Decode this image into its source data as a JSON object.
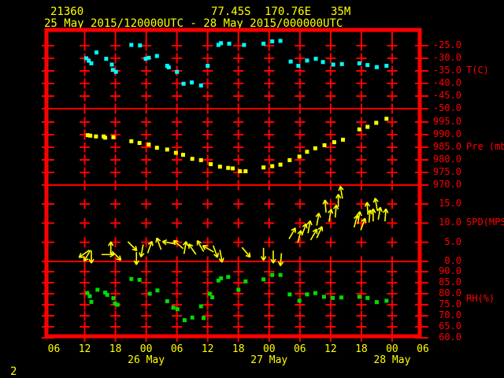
{
  "header": {
    "station_id": "21360",
    "lat": "77.45S",
    "lon": "170.76E",
    "elevation": "35M",
    "period": "25 May 2015/120000UTC - 28 May 2015/000000UTC"
  },
  "page_number": "2",
  "colors": {
    "background": "#000000",
    "grid": "#ff0000",
    "axis_text": "#ff0000",
    "time_text": "#ffff00",
    "temperature": "#00ffff",
    "pressure": "#ffff00",
    "wind": "#ffff00",
    "humidity": "#00dd00"
  },
  "x_axis": {
    "tick_interval_hours": 6,
    "tick_labels": [
      "06",
      "12",
      "18",
      "00",
      "06",
      "12",
      "18",
      "00",
      "06",
      "12",
      "18",
      "00",
      "06"
    ],
    "tick_hours": [
      0,
      6,
      12,
      18,
      24,
      30,
      36,
      42,
      48,
      54,
      60,
      66,
      72
    ],
    "date_labels": [
      {
        "text": "26 May",
        "hour": 18
      },
      {
        "text": "27 May",
        "hour": 42
      },
      {
        "text": "28 May",
        "hour": 66
      }
    ]
  },
  "chart_data": [
    {
      "type": "scatter",
      "name": "temperature",
      "axis_label": "T(C)",
      "unit": "C",
      "yticks": [
        -25.0,
        -30.0,
        -35.0,
        -40.0,
        -45.0,
        -50.0
      ],
      "points": [
        [
          6.3,
          -30.0
        ],
        [
          6.8,
          -31.0
        ],
        [
          7.3,
          -32.0
        ],
        [
          8.3,
          -27.7
        ],
        [
          10.2,
          -30.2
        ],
        [
          11.3,
          -32.5
        ],
        [
          11.5,
          -34.6
        ],
        [
          12.1,
          -35.4
        ],
        [
          15.1,
          -24.7
        ],
        [
          16.8,
          -24.9
        ],
        [
          17.9,
          -30.2
        ],
        [
          18.5,
          -29.8
        ],
        [
          20.1,
          -29.1
        ],
        [
          22.1,
          -33.0
        ],
        [
          22.4,
          -33.6
        ],
        [
          24.0,
          -35.4
        ],
        [
          25.3,
          -40.1
        ],
        [
          26.9,
          -39.6
        ],
        [
          28.7,
          -40.8
        ],
        [
          30.0,
          -33.0
        ],
        [
          32.1,
          -24.7
        ],
        [
          32.6,
          -24.0
        ],
        [
          34.2,
          -24.2
        ],
        [
          37.1,
          -24.7
        ],
        [
          40.9,
          -24.2
        ],
        [
          42.6,
          -23.3
        ],
        [
          44.2,
          -23.1
        ],
        [
          46.2,
          -31.3
        ],
        [
          47.7,
          -33.0
        ],
        [
          49.4,
          -30.9
        ],
        [
          51.1,
          -30.2
        ],
        [
          52.5,
          -31.5
        ],
        [
          54.5,
          -32.5
        ],
        [
          56.2,
          -32.3
        ],
        [
          59.6,
          -32.0
        ],
        [
          61.2,
          -32.7
        ],
        [
          63.0,
          -33.5
        ],
        [
          64.9,
          -33.0
        ]
      ]
    },
    {
      "type": "scatter",
      "name": "pressure",
      "axis_label": "Pre (mb)",
      "unit": "mb",
      "yticks": [
        995.0,
        990.0,
        985.0,
        980.0,
        975.0,
        970.0
      ],
      "points": [
        [
          6.6,
          989.8
        ],
        [
          7.1,
          989.6
        ],
        [
          8.2,
          989.3
        ],
        [
          9.7,
          989.3
        ],
        [
          10.0,
          988.8
        ],
        [
          11.6,
          989.0
        ],
        [
          15.1,
          987.4
        ],
        [
          16.7,
          986.7
        ],
        [
          18.5,
          986.1
        ],
        [
          20.1,
          984.8
        ],
        [
          22.1,
          984.1
        ],
        [
          23.8,
          982.8
        ],
        [
          25.2,
          982.0
        ],
        [
          27.0,
          980.4
        ],
        [
          28.7,
          979.9
        ],
        [
          30.6,
          978.3
        ],
        [
          32.4,
          977.3
        ],
        [
          34.0,
          976.8
        ],
        [
          34.9,
          976.6
        ],
        [
          36.3,
          975.5
        ],
        [
          37.4,
          975.5
        ],
        [
          40.9,
          977.0
        ],
        [
          42.6,
          977.5
        ],
        [
          44.2,
          978.1
        ],
        [
          46.0,
          979.9
        ],
        [
          47.9,
          981.3
        ],
        [
          49.4,
          983.2
        ],
        [
          51.0,
          984.6
        ],
        [
          52.8,
          985.8
        ],
        [
          54.7,
          987.0
        ],
        [
          56.4,
          988.0
        ],
        [
          59.6,
          992.1
        ],
        [
          61.2,
          993.1
        ],
        [
          62.9,
          994.7
        ],
        [
          64.9,
          996.3
        ]
      ]
    },
    {
      "type": "wind_vectors",
      "name": "wind_speed",
      "axis_label": "SPD(MPS)",
      "unit": "MPS",
      "yticks": [
        15.0,
        10.0,
        5.0,
        0.0
      ],
      "points_t_speed_dir": [
        [
          5.9,
          2.0,
          235
        ],
        [
          6.5,
          1.5,
          210
        ],
        [
          7.3,
          1.2,
          180
        ],
        [
          10.5,
          1.8,
          90
        ],
        [
          11.1,
          3.5,
          0
        ],
        [
          12.2,
          1.5,
          135
        ],
        [
          15.3,
          4.0,
          135
        ],
        [
          16.1,
          0.8,
          180
        ],
        [
          17.2,
          2.8,
          190
        ],
        [
          18.7,
          3.7,
          20
        ],
        [
          20.5,
          4.6,
          340
        ],
        [
          22.4,
          4.9,
          280
        ],
        [
          24.3,
          4.4,
          310
        ],
        [
          25.6,
          3.6,
          10
        ],
        [
          27.0,
          3.2,
          325
        ],
        [
          28.6,
          4.0,
          330
        ],
        [
          30.1,
          3.3,
          300
        ],
        [
          31.5,
          2.6,
          160
        ],
        [
          32.6,
          1.4,
          170
        ],
        [
          37.5,
          2.4,
          140
        ],
        [
          40.9,
          1.9,
          180
        ],
        [
          42.8,
          1.2,
          180
        ],
        [
          44.3,
          0.5,
          185
        ],
        [
          46.5,
          7.3,
          30
        ],
        [
          47.9,
          6.5,
          15
        ],
        [
          48.8,
          8.3,
          20
        ],
        [
          49.8,
          9.0,
          10
        ],
        [
          50.7,
          7.0,
          30
        ],
        [
          51.5,
          11.0,
          10
        ],
        [
          51.8,
          7.6,
          25
        ],
        [
          53.0,
          14.4,
          355
        ],
        [
          53.9,
          12.0,
          10
        ],
        [
          55.0,
          13.1,
          5
        ],
        [
          55.5,
          15.9,
          0
        ],
        [
          56.1,
          18.0,
          350
        ],
        [
          58.9,
          10.5,
          15
        ],
        [
          59.5,
          11.4,
          10
        ],
        [
          60.3,
          9.7,
          20
        ],
        [
          61.2,
          13.8,
          355
        ],
        [
          61.6,
          11.8,
          5
        ],
        [
          62.3,
          12.1,
          0
        ],
        [
          62.9,
          14.9,
          350
        ],
        [
          63.5,
          12.5,
          10
        ],
        [
          64.7,
          12.1,
          5
        ]
      ]
    },
    {
      "type": "scatter",
      "name": "relative_humidity",
      "axis_label": "RH(%)",
      "unit": "%",
      "yticks": [
        90.0,
        85.0,
        80.0,
        75.0,
        70.0,
        65.0,
        60.0
      ],
      "points": [
        [
          6.5,
          80.3
        ],
        [
          7.0,
          78.9
        ],
        [
          7.3,
          76.3
        ],
        [
          8.5,
          81.8
        ],
        [
          10.0,
          80.5
        ],
        [
          10.4,
          79.5
        ],
        [
          11.6,
          78.0
        ],
        [
          11.9,
          75.5
        ],
        [
          12.4,
          75.0
        ],
        [
          15.1,
          86.7
        ],
        [
          16.7,
          86.3
        ],
        [
          18.7,
          80.0
        ],
        [
          20.2,
          81.5
        ],
        [
          22.1,
          76.6
        ],
        [
          23.3,
          73.7
        ],
        [
          24.1,
          73.0
        ],
        [
          25.5,
          68.0
        ],
        [
          27.0,
          69.2
        ],
        [
          28.7,
          74.3
        ],
        [
          29.2,
          69.0
        ],
        [
          30.4,
          80.0
        ],
        [
          30.9,
          78.4
        ],
        [
          32.1,
          86.0
        ],
        [
          32.6,
          87.0
        ],
        [
          34.0,
          87.6
        ],
        [
          36.0,
          81.8
        ],
        [
          37.4,
          85.6
        ],
        [
          40.9,
          86.5
        ],
        [
          42.6,
          88.5
        ],
        [
          44.2,
          88.5
        ],
        [
          46.0,
          79.7
        ],
        [
          47.9,
          76.8
        ],
        [
          49.4,
          79.7
        ],
        [
          51.0,
          80.3
        ],
        [
          52.7,
          78.6
        ],
        [
          54.4,
          78.1
        ],
        [
          56.1,
          78.3
        ],
        [
          59.6,
          78.6
        ],
        [
          61.2,
          78.1
        ],
        [
          63.0,
          76.2
        ],
        [
          64.9,
          76.8
        ]
      ]
    }
  ]
}
